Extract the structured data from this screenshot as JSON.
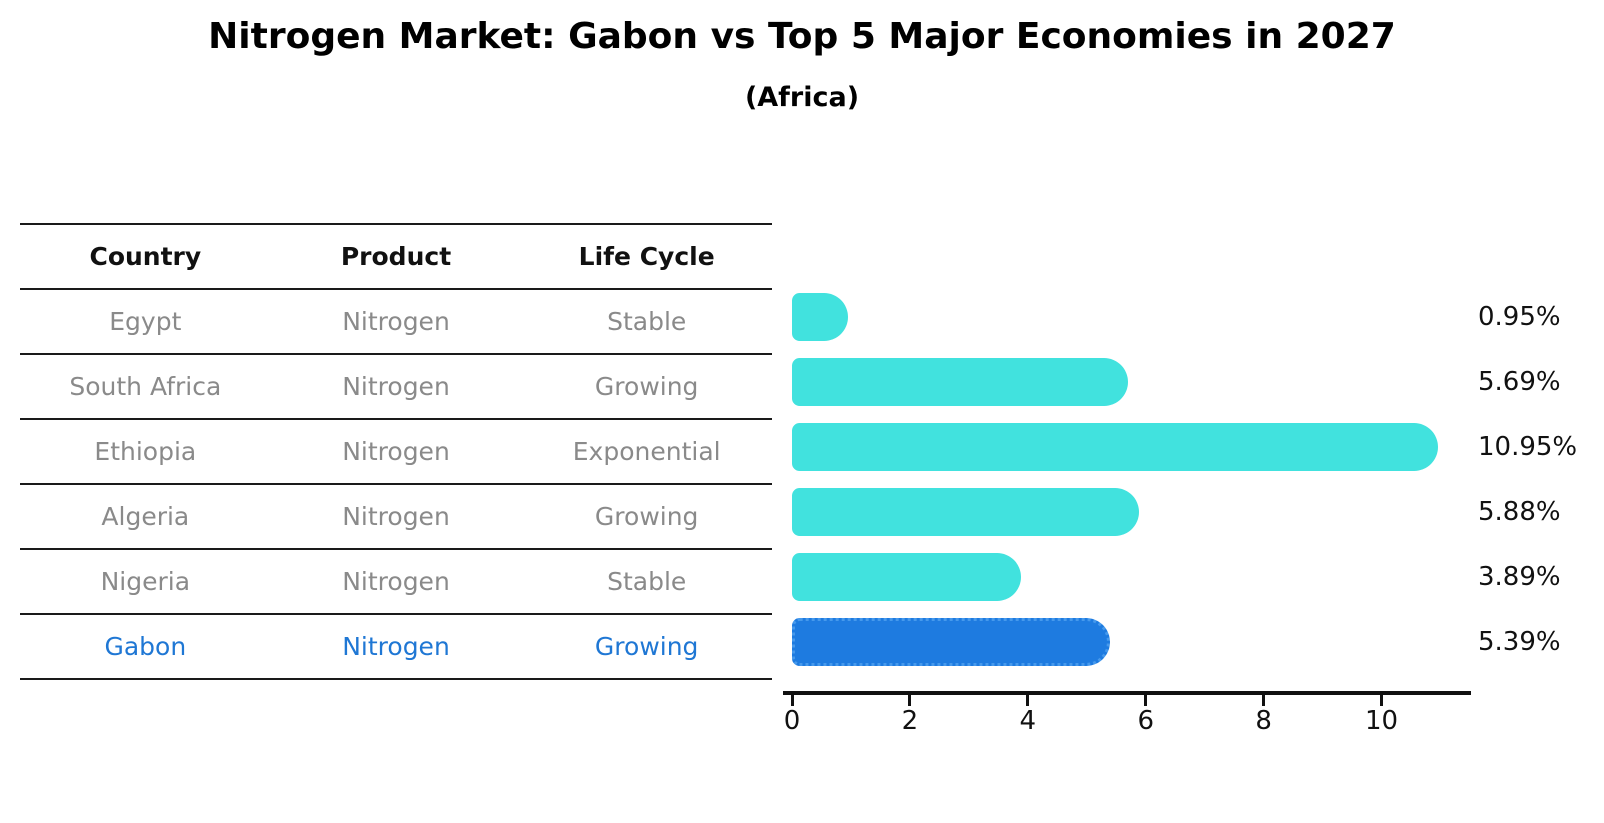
{
  "title": "Nitrogen Market: Gabon vs Top 5 Major Economies in 2027",
  "subtitle": "(Africa)",
  "table": {
    "headers": [
      "Country",
      "Product",
      "Life Cycle"
    ],
    "rows": [
      {
        "country": "Egypt",
        "product": "Nitrogen",
        "life_cycle": "Stable",
        "highlight": false
      },
      {
        "country": "South Africa",
        "product": "Nitrogen",
        "life_cycle": "Growing",
        "highlight": false
      },
      {
        "country": "Ethiopia",
        "product": "Nitrogen",
        "life_cycle": "Exponential",
        "highlight": false
      },
      {
        "country": "Algeria",
        "product": "Nitrogen",
        "life_cycle": "Growing",
        "highlight": false
      },
      {
        "country": "Nigeria",
        "product": "Nitrogen",
        "life_cycle": "Stable",
        "highlight": false
      },
      {
        "country": "Gabon",
        "product": "Nitrogen",
        "life_cycle": "Growing",
        "highlight": true
      }
    ]
  },
  "chart_data": {
    "type": "bar",
    "orientation": "horizontal",
    "title": "Nitrogen Market: Gabon vs Top 5 Major Economies in 2027",
    "subtitle": "(Africa)",
    "categories": [
      "Egypt",
      "South Africa",
      "Ethiopia",
      "Algeria",
      "Nigeria",
      "Gabon"
    ],
    "values": [
      0.95,
      5.69,
      10.95,
      5.88,
      3.89,
      5.39
    ],
    "value_labels": [
      "0.95%",
      "5.69%",
      "10.95%",
      "5.88%",
      "3.89%",
      "5.39%"
    ],
    "x_ticks": [
      0,
      2,
      4,
      6,
      8,
      10
    ],
    "xlim": [
      0,
      11.5
    ],
    "grid": false,
    "bar_color": "#41e2de",
    "highlight_color": "#1e7be0",
    "highlight_index": 5
  },
  "colors": {
    "bar": "#41e2de",
    "highlight_bar": "#1e7be0",
    "highlight_text": "#1f77d4",
    "table_text": "#8a8a8a",
    "axis": "#111111"
  }
}
